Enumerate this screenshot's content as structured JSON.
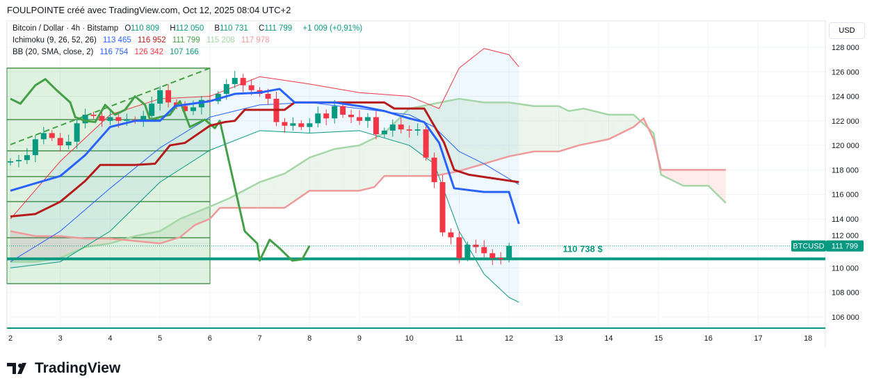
{
  "header": {
    "title": "FOULPOINTE créé avec TradingView.com, Oct 12, 2025 08:04 UTC+2"
  },
  "legend": {
    "symbol": "Bitcoin / Dollar · 4h · Bitstamp",
    "o": "O",
    "o_val": "110 809",
    "h": "H",
    "h_val": "112 050",
    "b": "B",
    "b_val": "110 731",
    "c": "C",
    "c_val": "111 799",
    "change": "+1 009 (+0,91%)",
    "ichimoku": "Ichimoku (9, 26, 52, 26)",
    "ich_vals": [
      "113 465",
      "116 952",
      "111 799",
      "115 208",
      "117 978"
    ],
    "bb": "BB (20, SMA, close, 2)",
    "bb_vals": [
      "116 754",
      "126 342",
      "107 166"
    ]
  },
  "currency": "USD",
  "brand": "TradingView",
  "colors": {
    "up": "#089981",
    "down": "#f23645",
    "tenkan": "#2962ff",
    "kijun": "#b71c1c",
    "chikou": "#43a047",
    "spanA": "#a5d6a7",
    "spanB": "#ef9a9a",
    "bbMid": "#2962ff",
    "bbUp": "#f23645",
    "bbLow": "#089981"
  },
  "chart_data": {
    "type": "candlestick",
    "symbol": "BTCUSD",
    "timeframe": "4h",
    "ylim": [
      105000,
      129500
    ],
    "y_ticks": [
      106000,
      108000,
      110000,
      112000,
      114000,
      116000,
      118000,
      120000,
      122000,
      124000,
      126000,
      128000
    ],
    "y_tick_labels": [
      "106 000",
      "108 000",
      "110 000",
      "112 000",
      "114 000",
      "116 000",
      "118 000",
      "120 000",
      "122 000",
      "124 000",
      "126 000",
      "128 000"
    ],
    "x_ticks": [
      2,
      3,
      4,
      5,
      6,
      7,
      8,
      9,
      10,
      11,
      12,
      13,
      14,
      15,
      16,
      17,
      18
    ],
    "x_tick_labels": [
      "2",
      "3",
      "4",
      "5",
      "6",
      "7",
      "8",
      "9",
      "10",
      "11",
      "12",
      "13",
      "14",
      "15",
      "16",
      "17",
      "18"
    ],
    "candle_start_day": 2.0,
    "candle_step_day": 0.1667,
    "closes": [
      118700,
      118800,
      119200,
      120500,
      121000,
      120600,
      120000,
      120300,
      121800,
      122500,
      122400,
      122000,
      122300,
      122000,
      122100,
      122000,
      122400,
      123400,
      124500,
      123500,
      123200,
      122800,
      123100,
      123700,
      123600,
      124200,
      125000,
      125500,
      124900,
      124500,
      124200,
      123800,
      121900,
      121600,
      121800,
      121500,
      121800,
      122600,
      122200,
      123200,
      122500,
      122300,
      122000,
      122300,
      120900,
      121200,
      121700,
      121300,
      121200,
      121300,
      119000,
      117000,
      112900,
      112500,
      110800,
      111900,
      111700,
      111200,
      110800,
      110700,
      111799
    ],
    "first_open": 118600,
    "last_price": 111799,
    "last_price_label": "BTCUSD",
    "last_price_text": "111 799",
    "horizontal_level": 110738,
    "horizontal_level_label": "110 738 $",
    "series": [
      {
        "name": "Tenkan",
        "points": [
          [
            2,
            116300
          ],
          [
            2.5,
            116900
          ],
          [
            3,
            117500
          ],
          [
            3.5,
            119200
          ],
          [
            4,
            121500
          ],
          [
            4.5,
            122000
          ],
          [
            5,
            122000
          ],
          [
            5.3,
            123200
          ],
          [
            6,
            123600
          ],
          [
            6.5,
            124200
          ],
          [
            7,
            124300
          ],
          [
            7.4,
            124600
          ],
          [
            7.7,
            123500
          ],
          [
            8.5,
            123500
          ],
          [
            9,
            123200
          ],
          [
            9.5,
            122800
          ],
          [
            10,
            122200
          ],
          [
            10.3,
            121900
          ],
          [
            10.6,
            120200
          ],
          [
            10.9,
            116500
          ],
          [
            11.5,
            116200
          ],
          [
            12,
            116200
          ],
          [
            12.2,
            113600
          ]
        ]
      },
      {
        "name": "Kijun",
        "points": [
          [
            2,
            114200
          ],
          [
            2.5,
            114400
          ],
          [
            3,
            115400
          ],
          [
            3.5,
            117100
          ],
          [
            3.8,
            118400
          ],
          [
            4.5,
            118400
          ],
          [
            4.9,
            118500
          ],
          [
            5.2,
            120000
          ],
          [
            5.5,
            120200
          ],
          [
            6,
            121600
          ],
          [
            6.3,
            121900
          ],
          [
            6.5,
            122000
          ],
          [
            6.7,
            122900
          ],
          [
            7.5,
            122900
          ],
          [
            7.7,
            123500
          ],
          [
            9.5,
            123500
          ],
          [
            9.7,
            123000
          ],
          [
            10.3,
            123000
          ],
          [
            10.7,
            120200
          ],
          [
            10.9,
            118000
          ],
          [
            11.2,
            117600
          ],
          [
            12.2,
            117000
          ]
        ]
      },
      {
        "name": "Chikou",
        "points": [
          [
            2,
            123800
          ],
          [
            2.2,
            123400
          ],
          [
            2.5,
            124900
          ],
          [
            2.7,
            125400
          ],
          [
            2.9,
            124600
          ],
          [
            3.2,
            123500
          ],
          [
            3.3,
            122300
          ],
          [
            3.5,
            122000
          ],
          [
            3.7,
            121900
          ],
          [
            3.9,
            123300
          ],
          [
            4.1,
            122500
          ],
          [
            4.3,
            122900
          ],
          [
            4.5,
            124000
          ],
          [
            4.7,
            123300
          ],
          [
            4.8,
            122100
          ],
          [
            5.2,
            122500
          ],
          [
            5.4,
            123600
          ],
          [
            5.6,
            121500
          ],
          [
            5.9,
            122100
          ],
          [
            6.1,
            121400
          ],
          [
            6.2,
            122000
          ],
          [
            6.7,
            113000
          ],
          [
            6.95,
            112000
          ],
          [
            7.0,
            110600
          ],
          [
            7.2,
            112300
          ],
          [
            7.4,
            111600
          ],
          [
            7.65,
            110600
          ],
          [
            7.85,
            110700
          ],
          [
            8.0,
            111800
          ]
        ]
      },
      {
        "name": "Senkou A",
        "points": [
          [
            2,
            110500
          ],
          [
            2.5,
            110500
          ],
          [
            3,
            110800
          ],
          [
            3.5,
            111700
          ],
          [
            4,
            112000
          ],
          [
            4.5,
            112600
          ],
          [
            5,
            113000
          ],
          [
            5.4,
            114000
          ],
          [
            6,
            115000
          ],
          [
            6.4,
            115700
          ],
          [
            7,
            117000
          ],
          [
            7.5,
            117700
          ],
          [
            8,
            119000
          ],
          [
            8.5,
            119700
          ],
          [
            9,
            120000
          ],
          [
            9.5,
            121000
          ],
          [
            10,
            123000
          ],
          [
            10.5,
            123400
          ],
          [
            11,
            123800
          ],
          [
            11.5,
            123500
          ],
          [
            12,
            123500
          ],
          [
            12.5,
            123200
          ],
          [
            13,
            123200
          ],
          [
            13.2,
            122800
          ],
          [
            13.5,
            123000
          ],
          [
            14,
            122500
          ],
          [
            14.5,
            122500
          ],
          [
            14.9,
            121000
          ],
          [
            15.05,
            117600
          ],
          [
            15.5,
            116700
          ],
          [
            16,
            116700
          ],
          [
            16.35,
            115300
          ]
        ]
      },
      {
        "name": "Senkou B",
        "points": [
          [
            2,
            113000
          ],
          [
            2.5,
            112600
          ],
          [
            3,
            112600
          ],
          [
            3.5,
            112400
          ],
          [
            4,
            112400
          ],
          [
            4.5,
            112200
          ],
          [
            5,
            112000
          ],
          [
            5.4,
            112500
          ],
          [
            5.7,
            113500
          ],
          [
            6,
            114000
          ],
          [
            6.2,
            114900
          ],
          [
            7.5,
            114900
          ],
          [
            8,
            116300
          ],
          [
            9,
            116300
          ],
          [
            9.3,
            116600
          ],
          [
            9.5,
            117500
          ],
          [
            10.5,
            117500
          ],
          [
            11,
            117900
          ],
          [
            11.5,
            118500
          ],
          [
            12,
            119100
          ],
          [
            12.5,
            119500
          ],
          [
            13,
            119500
          ],
          [
            13.4,
            120000
          ],
          [
            14,
            120500
          ],
          [
            14.5,
            121500
          ],
          [
            14.7,
            122200
          ],
          [
            14.9,
            120500
          ],
          [
            15.05,
            118000
          ],
          [
            16.35,
            118000
          ]
        ]
      },
      {
        "name": "BB Basis",
        "points": [
          [
            2,
            110500
          ],
          [
            3,
            113000
          ],
          [
            4,
            116500
          ],
          [
            5,
            119800
          ],
          [
            6,
            122300
          ],
          [
            7,
            123300
          ],
          [
            8,
            123500
          ],
          [
            9,
            123000
          ],
          [
            10,
            122500
          ],
          [
            10.5,
            121500
          ],
          [
            11,
            119500
          ],
          [
            11.5,
            118500
          ],
          [
            12.2,
            116800
          ]
        ]
      },
      {
        "name": "BB Upper",
        "points": [
          [
            2,
            114000
          ],
          [
            3,
            118700
          ],
          [
            4,
            122500
          ],
          [
            5,
            123800
          ],
          [
            6,
            124000
          ],
          [
            7,
            125600
          ],
          [
            8,
            125000
          ],
          [
            9,
            124300
          ],
          [
            10,
            124000
          ],
          [
            10.6,
            123000
          ],
          [
            11,
            126300
          ],
          [
            11.5,
            127900
          ],
          [
            12,
            127400
          ],
          [
            12.2,
            126400
          ]
        ]
      },
      {
        "name": "BB Lower",
        "points": [
          [
            2,
            110000
          ],
          [
            3,
            110500
          ],
          [
            4,
            113000
          ],
          [
            5,
            117000
          ],
          [
            6,
            119600
          ],
          [
            7,
            121200
          ],
          [
            8,
            121000
          ],
          [
            9,
            121200
          ],
          [
            10,
            120000
          ],
          [
            10.5,
            118500
          ],
          [
            11,
            113000
          ],
          [
            11.5,
            109500
          ],
          [
            12,
            107600
          ],
          [
            12.2,
            107200
          ]
        ]
      }
    ]
  }
}
